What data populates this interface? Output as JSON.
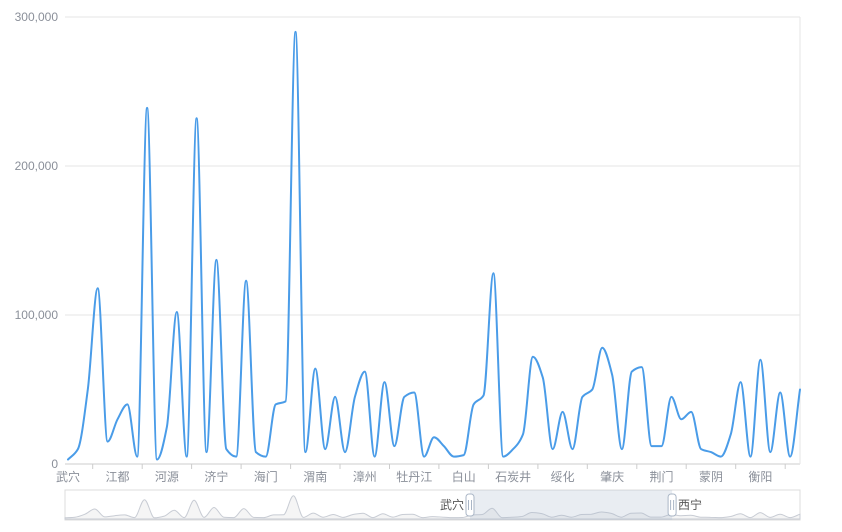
{
  "chart_data": {
    "type": "line",
    "title": "",
    "smooth": true,
    "line_color": "#4a9ce8",
    "categories_labeled": [
      "武穴",
      "江都",
      "河源",
      "济宁",
      "海门",
      "渭南",
      "漳州",
      "牡丹江",
      "白山",
      "石炭井",
      "绥化",
      "肇庆",
      "荆门",
      "蒙阴",
      "衡阳"
    ],
    "label_every": 5,
    "values": [
      3000,
      10000,
      50000,
      118000,
      15000,
      30000,
      40000,
      5000,
      239000,
      3000,
      25000,
      102000,
      5000,
      232000,
      8000,
      137000,
      10000,
      5000,
      123000,
      8000,
      5000,
      40000,
      42000,
      290000,
      8000,
      64000,
      10000,
      45000,
      8000,
      45000,
      62000,
      5000,
      55000,
      12000,
      45000,
      48000,
      5000,
      18000,
      12000,
      5000,
      6000,
      40000,
      46000,
      128000,
      5000,
      10000,
      20000,
      72000,
      58000,
      10000,
      35000,
      10000,
      45000,
      50000,
      78000,
      60000,
      10000,
      62000,
      65000,
      12000,
      12000,
      45000,
      30000,
      35000,
      10000,
      8000,
      5000,
      20000,
      55000,
      5000,
      70000,
      8000,
      48000,
      5000,
      50000
    ],
    "ylim": [
      0,
      300000
    ],
    "y_ticks": [
      0,
      100000,
      200000,
      300000
    ],
    "y_tick_labels": [
      "0",
      "100,000",
      "200,000",
      "300,000"
    ],
    "grid": true,
    "legend": false,
    "datazoom": {
      "start_label": "武穴",
      "end_label": "西宁",
      "window_percent": [
        55.1,
        82.6
      ]
    }
  },
  "colors": {
    "line": "#4a9ce8",
    "grid_line": "#e6e6e6",
    "axis_line": "#cccccc",
    "axis_label": "#8a8f99",
    "datazoom_fill": "rgba(167,183,204,0.25)",
    "datazoom_border": "#dcdcdc",
    "datazoom_shadow": "#c8ccd4",
    "handle_stroke": "#aab6c6"
  }
}
